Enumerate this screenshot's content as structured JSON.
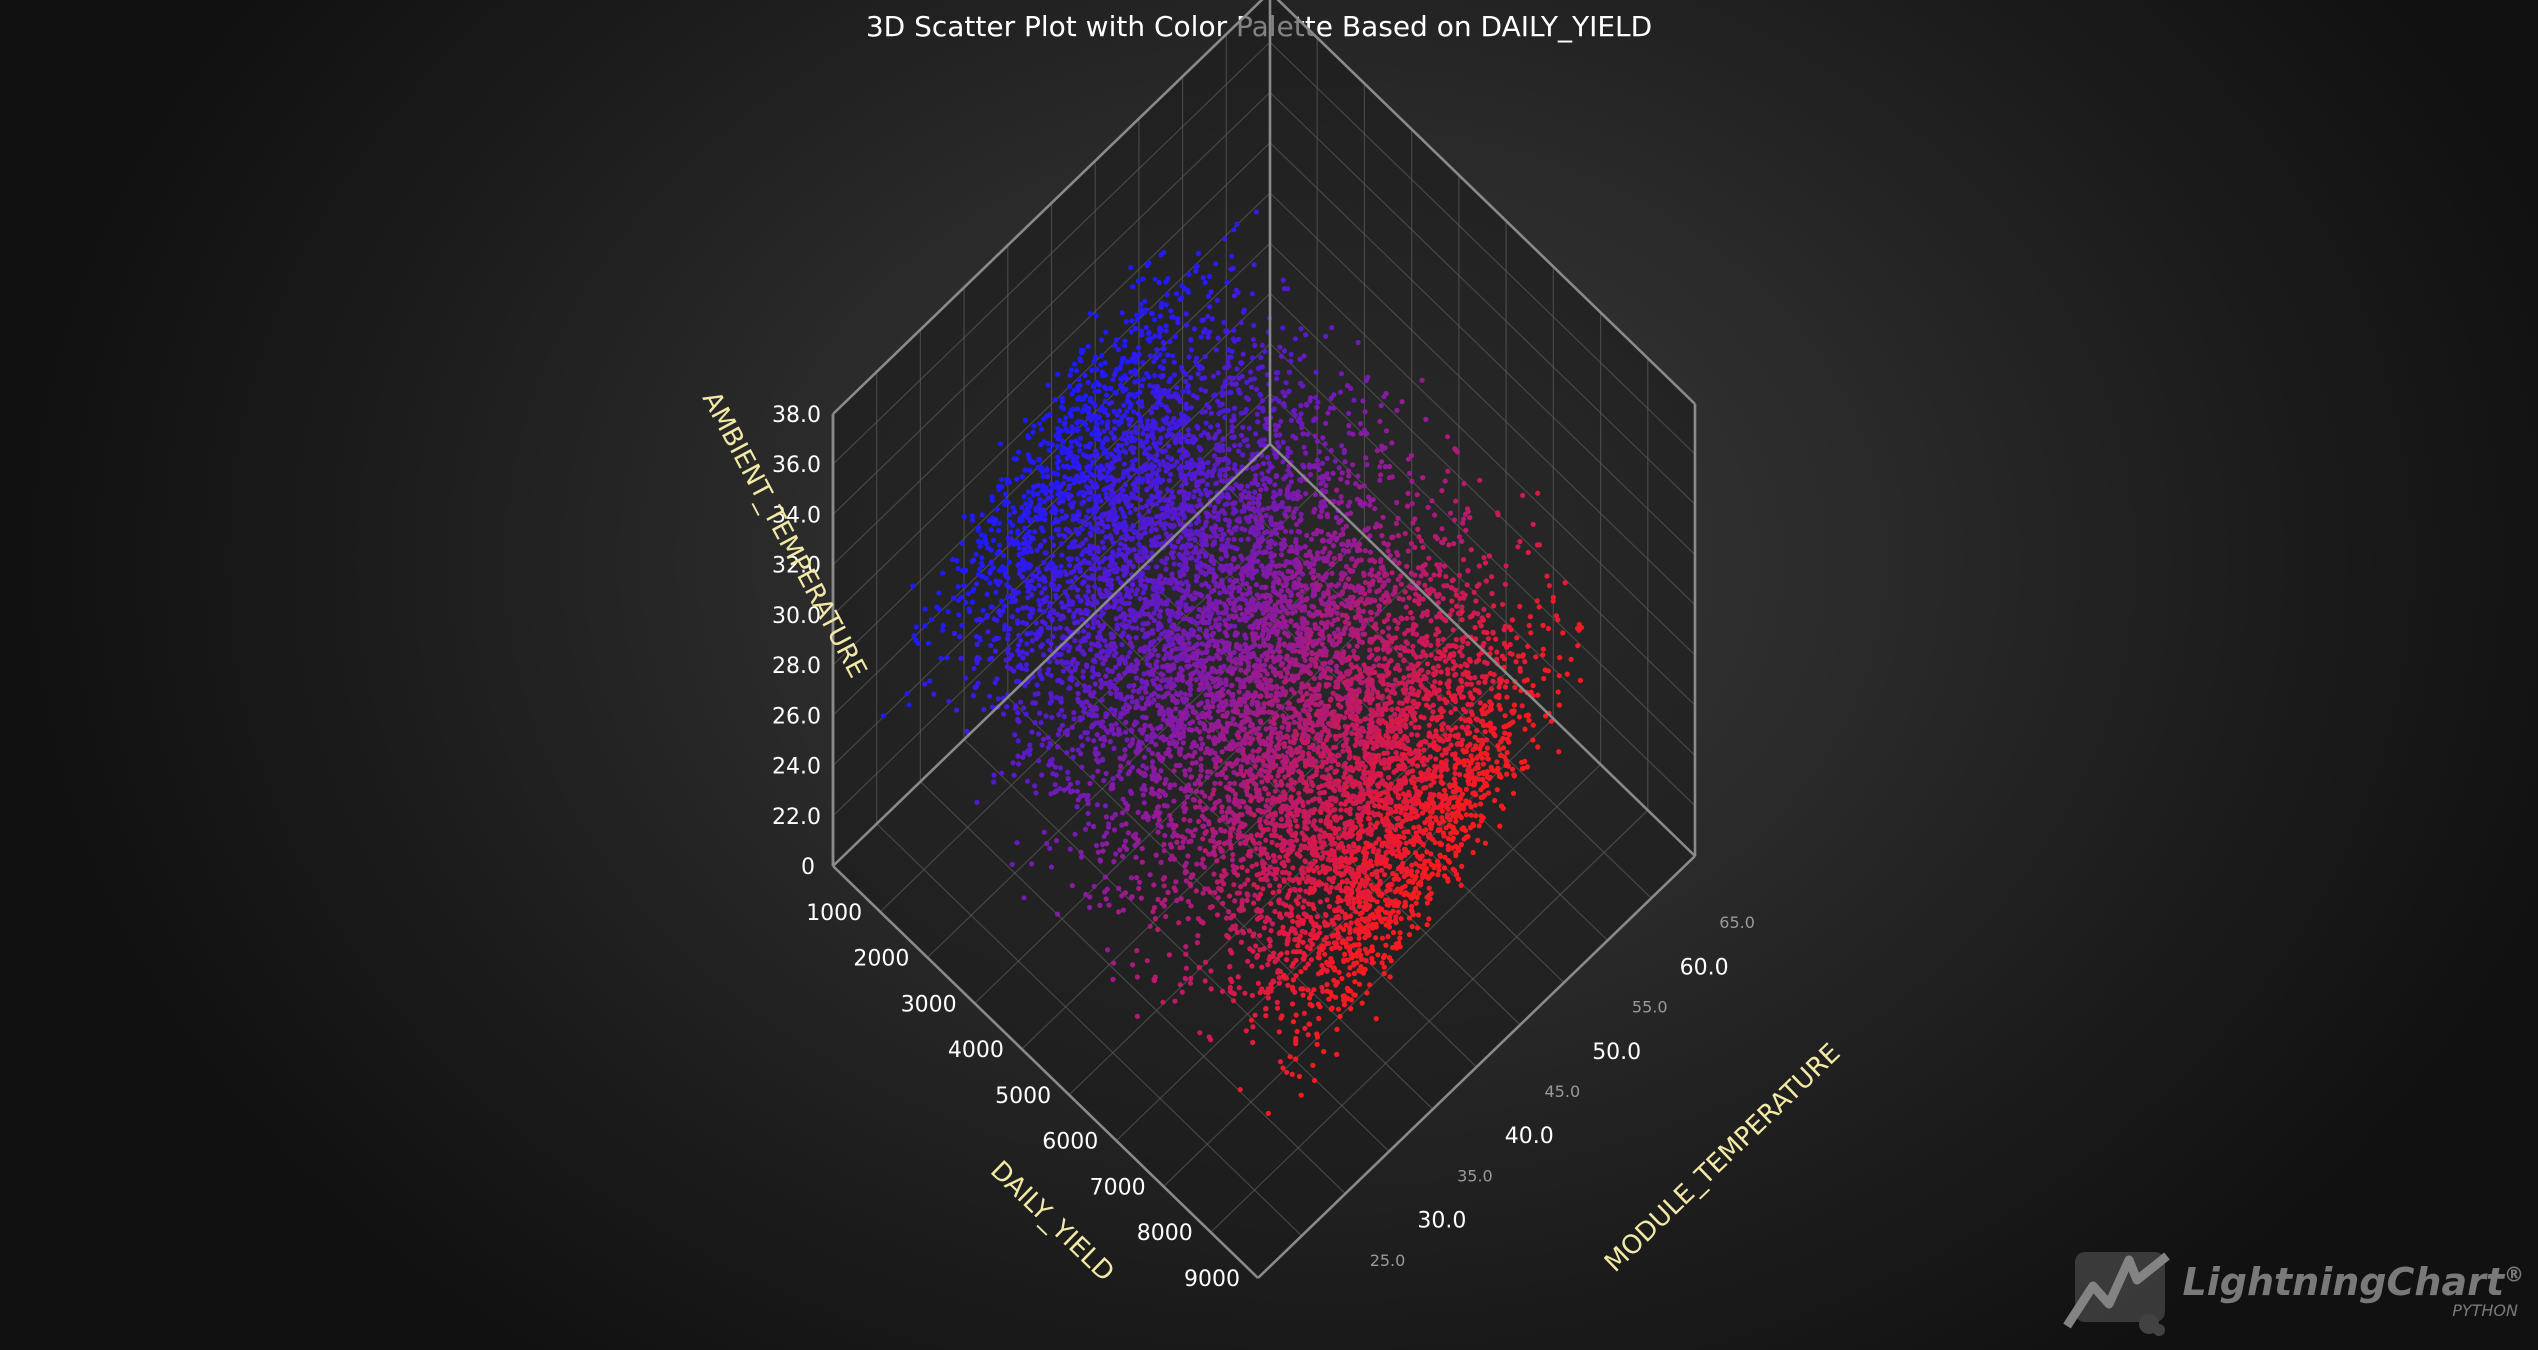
{
  "chart_data": {
    "type": "scatter3d",
    "title": "3D Scatter Plot with Color Palette Based on DAILY_YIELD",
    "x_axis": {
      "title": "MODULE_TEMPERATURE",
      "range": [
        20.0,
        70.0
      ],
      "major_ticks": [
        "30.0",
        "40.0",
        "50.0",
        "60.0"
      ],
      "minor_ticks": [
        "25.0",
        "35.0",
        "45.0",
        "55.0",
        "65.0"
      ]
    },
    "y_axis": {
      "title": "AMBIENT_TEMPERATURE",
      "range": [
        20.0,
        38.0
      ],
      "ticks": [
        "22.0",
        "24.0",
        "26.0",
        "28.0",
        "30.0",
        "32.0",
        "34.0",
        "36.0",
        "38.0"
      ]
    },
    "z_axis": {
      "title": "DAILY_YIELD",
      "range": [
        0,
        9000
      ],
      "ticks": [
        "0",
        "1000",
        "2000",
        "3000",
        "4000",
        "5000",
        "6000",
        "7000",
        "8000",
        "9000"
      ]
    },
    "color_palette": {
      "based_on": "DAILY_YIELD",
      "low_color": "#1a1aff",
      "mid_color": "#8a1aa0",
      "high_color": "#ff1a1a"
    },
    "series": [
      {
        "x_range": [
          22.0,
          62.0
        ],
        "y_range": [
          21.0,
          36.5
        ],
        "z_range": [
          0,
          8800
        ],
        "point_count_approx": 30000
      }
    ],
    "grid": true,
    "legend": "none"
  },
  "brand": {
    "name": "LightningChart",
    "registered": "®",
    "sub": "PYTHON"
  },
  "colors": {
    "background": "#2b2b2b",
    "axis_title": "#f3e9a6",
    "grid": "#5a5a5a"
  }
}
